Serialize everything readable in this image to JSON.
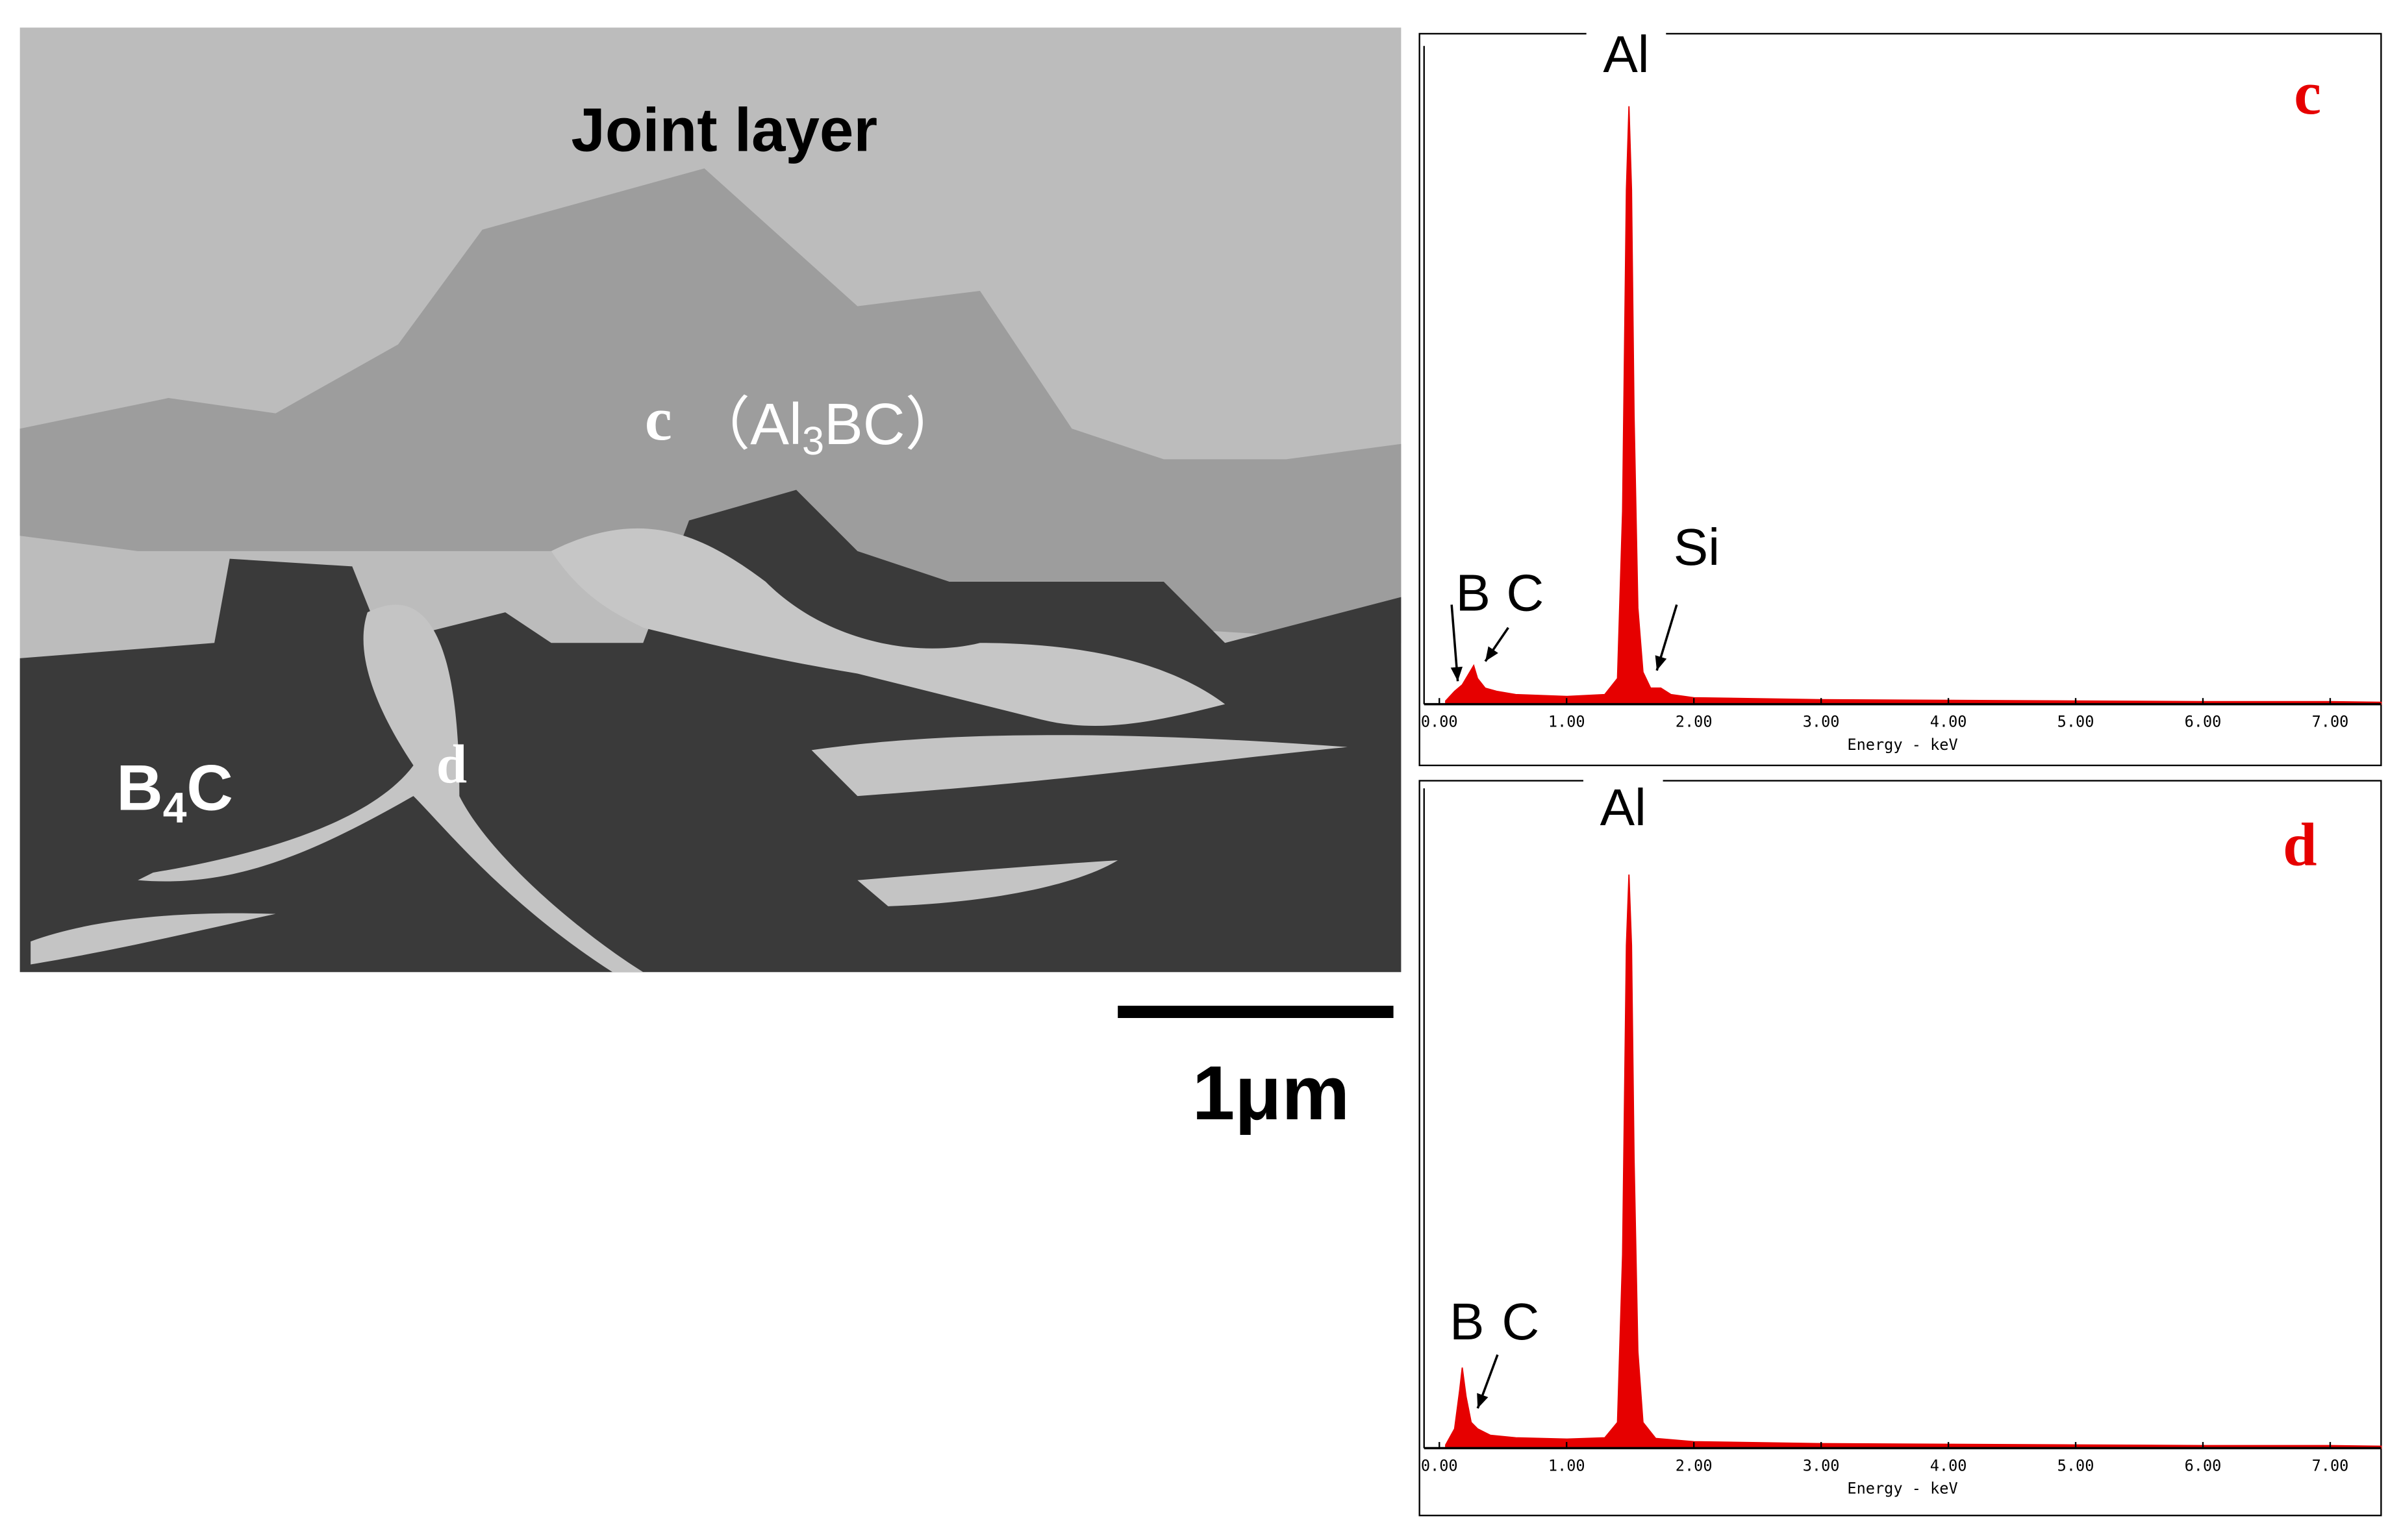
{
  "sem_image": {
    "title": "Joint layer",
    "point_c": "c",
    "phase_c": [
      "（Al",
      "3",
      "BC）"
    ],
    "substrate": [
      "B",
      "4",
      "C"
    ],
    "point_d": "d",
    "scale_bar": "1μm"
  },
  "chart_data": [
    {
      "type": "area",
      "panel_label": "c",
      "xlabel": "Energy - keV",
      "annotations": [
        "Al",
        "B",
        "C",
        "Si"
      ],
      "xlim": [
        -0.12,
        7.4
      ],
      "ylim": [
        0,
        100
      ],
      "xticks": [
        {
          "value": 0,
          "label": "0.00"
        },
        {
          "value": 1,
          "label": "1.00"
        },
        {
          "value": 2,
          "label": "2.00"
        },
        {
          "value": 3,
          "label": "3.00"
        },
        {
          "value": 4,
          "label": "4.00"
        },
        {
          "value": 5,
          "label": "5.00"
        },
        {
          "value": 6,
          "label": "6.00"
        },
        {
          "value": 7,
          "label": "7.00"
        }
      ],
      "x": [
        0.05,
        0.12,
        0.18,
        0.24,
        0.27,
        0.3,
        0.36,
        0.45,
        0.6,
        1.0,
        1.3,
        1.4,
        1.44,
        1.47,
        1.49,
        1.51,
        1.53,
        1.56,
        1.6,
        1.66,
        1.74,
        1.82,
        2.0,
        3.0,
        4.0,
        5.0,
        6.0,
        7.0,
        7.4
      ],
      "series": [
        {
          "name": "c",
          "color": "#e60000",
          "values": [
            0.5,
            2,
            3,
            5,
            6,
            4,
            2.5,
            2,
            1.5,
            1.2,
            1.5,
            4,
            30,
            80,
            93,
            80,
            45,
            15,
            5,
            2.5,
            2.5,
            1.5,
            1,
            0.7,
            0.6,
            0.5,
            0.4,
            0.4,
            0.3
          ]
        }
      ]
    },
    {
      "type": "area",
      "panel_label": "d",
      "xlabel": "Energy - keV",
      "annotations": [
        "Al",
        "B",
        "C"
      ],
      "xlim": [
        -0.12,
        7.4
      ],
      "ylim": [
        0,
        100
      ],
      "xticks": [
        {
          "value": 0,
          "label": "0.00"
        },
        {
          "value": 1,
          "label": "1.00"
        },
        {
          "value": 2,
          "label": "2.00"
        },
        {
          "value": 3,
          "label": "3.00"
        },
        {
          "value": 4,
          "label": "4.00"
        },
        {
          "value": 5,
          "label": "5.00"
        },
        {
          "value": 6,
          "label": "6.00"
        },
        {
          "value": 7,
          "label": "7.00"
        }
      ],
      "x": [
        0.05,
        0.12,
        0.16,
        0.18,
        0.21,
        0.25,
        0.3,
        0.4,
        0.6,
        1.0,
        1.3,
        1.4,
        1.44,
        1.47,
        1.49,
        1.51,
        1.53,
        1.56,
        1.6,
        1.7,
        2.0,
        3.0,
        4.0,
        5.0,
        6.0,
        7.0,
        7.4
      ],
      "series": [
        {
          "name": "d",
          "color": "#e60000",
          "values": [
            0.5,
            3,
            9,
            12.5,
            8,
            4,
            3,
            2,
            1.6,
            1.4,
            1.6,
            4,
            30,
            78,
            89,
            78,
            45,
            15,
            4,
            1.5,
            1,
            0.7,
            0.6,
            0.5,
            0.4,
            0.4,
            0.3
          ]
        }
      ]
    }
  ]
}
